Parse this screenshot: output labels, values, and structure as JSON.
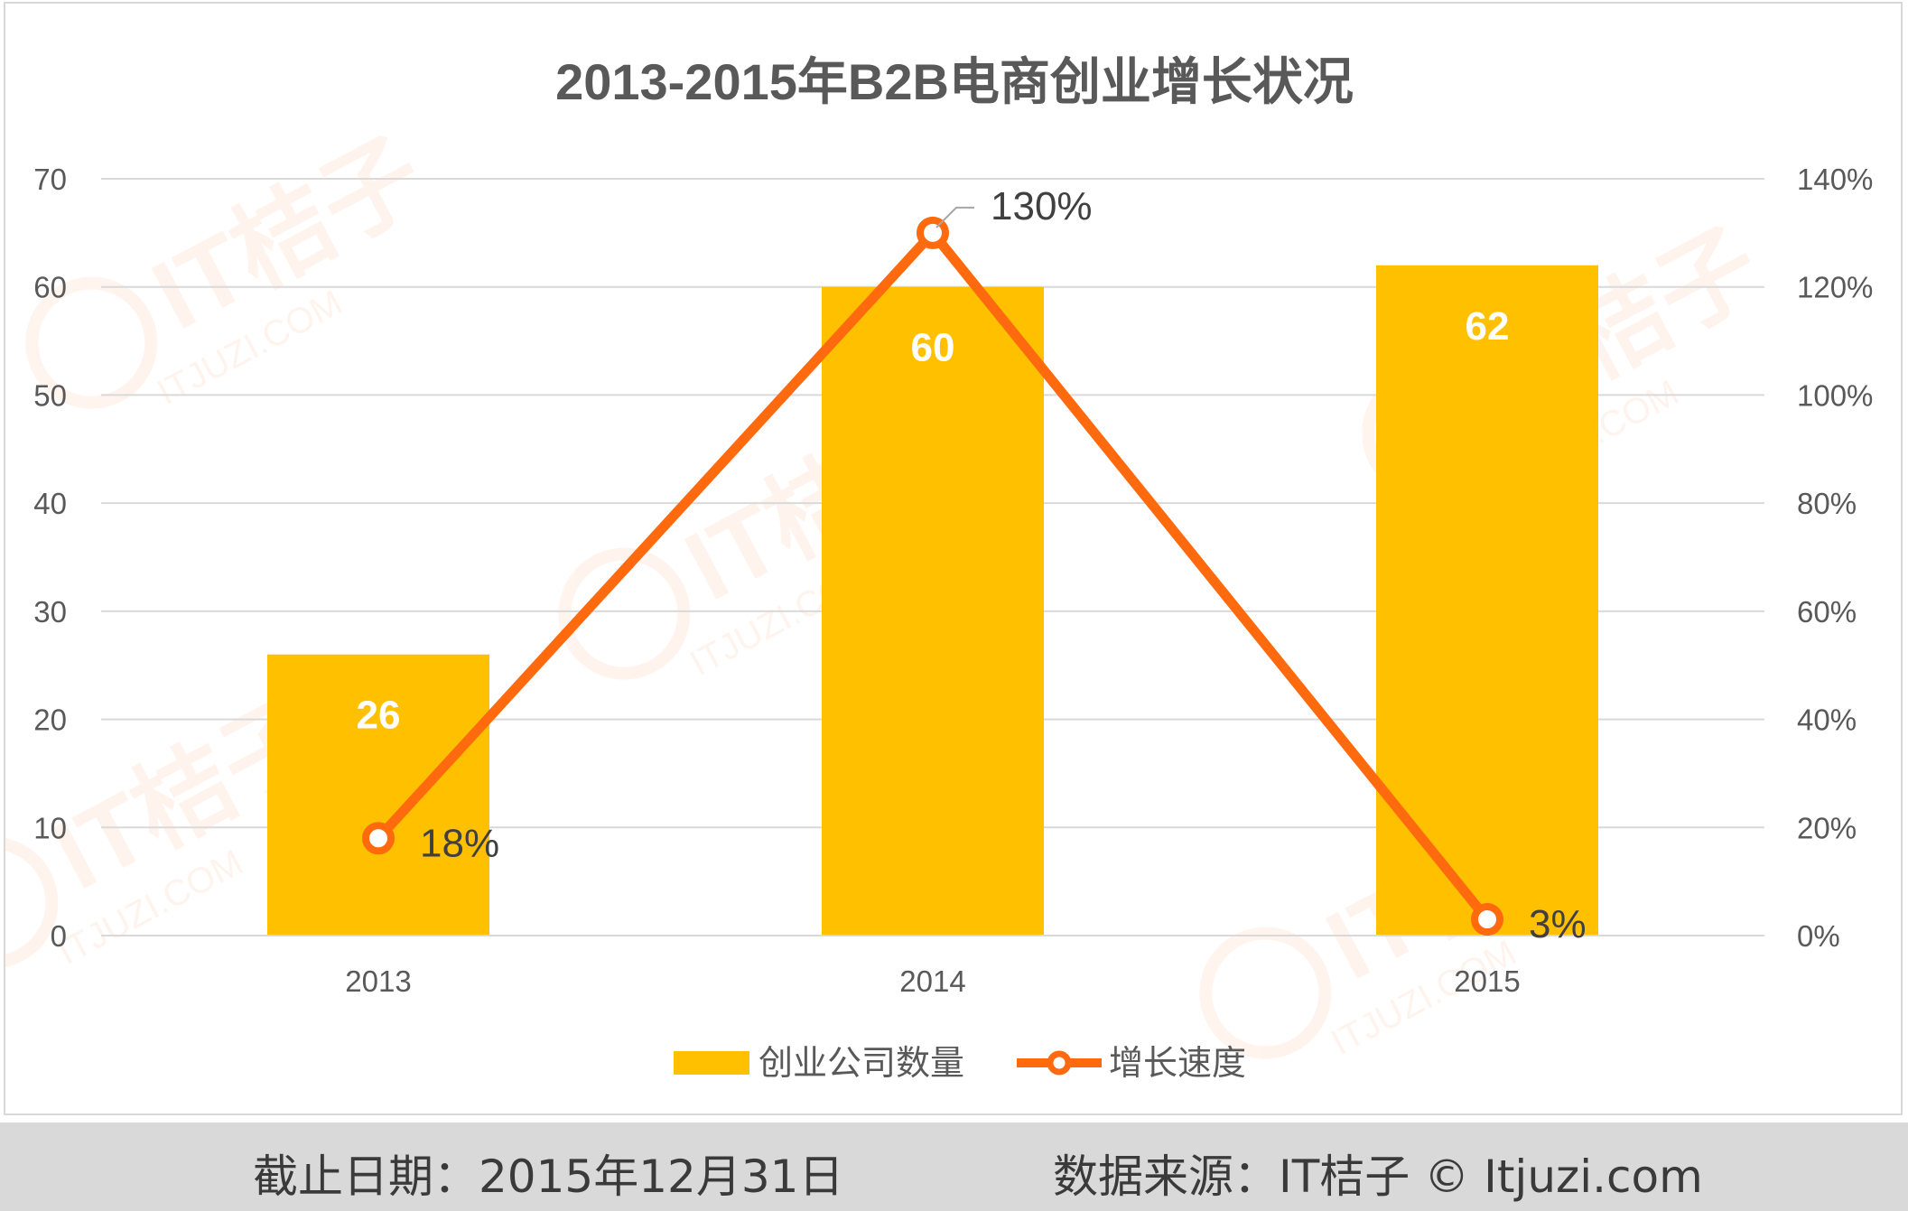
{
  "chart_data": {
    "type": "bar",
    "title": "2013-2015年B2B电商创业增长状况",
    "categories": [
      "2013",
      "2014",
      "2015"
    ],
    "series": [
      {
        "name": "创业公司数量",
        "type": "bar",
        "axis": "left",
        "values": [
          26,
          60,
          62
        ],
        "labels": [
          "26",
          "60",
          "62"
        ],
        "color": "#FFC000"
      },
      {
        "name": "增长速度",
        "type": "line",
        "axis": "right",
        "values": [
          18,
          130,
          3
        ],
        "labels": [
          "18%",
          "130%",
          "3%"
        ],
        "color": "#FF6A0E"
      }
    ],
    "y_left": {
      "min": 0,
      "max": 70,
      "step": 10,
      "ticks": [
        "0",
        "10",
        "20",
        "30",
        "40",
        "50",
        "60",
        "70"
      ]
    },
    "y_right": {
      "min": 0,
      "max": 140,
      "step": 20,
      "ticks": [
        "0%",
        "20%",
        "40%",
        "60%",
        "80%",
        "100%",
        "120%",
        "140%"
      ]
    },
    "grid": true,
    "legend_position": "bottom"
  },
  "watermark": {
    "text": "IT桔子",
    "subtext": "ITJUZI.COM"
  },
  "footer": {
    "date_text": "截止日期：2015年12月31日",
    "source_text": "数据来源：IT桔子 © Itjuzi.com"
  }
}
